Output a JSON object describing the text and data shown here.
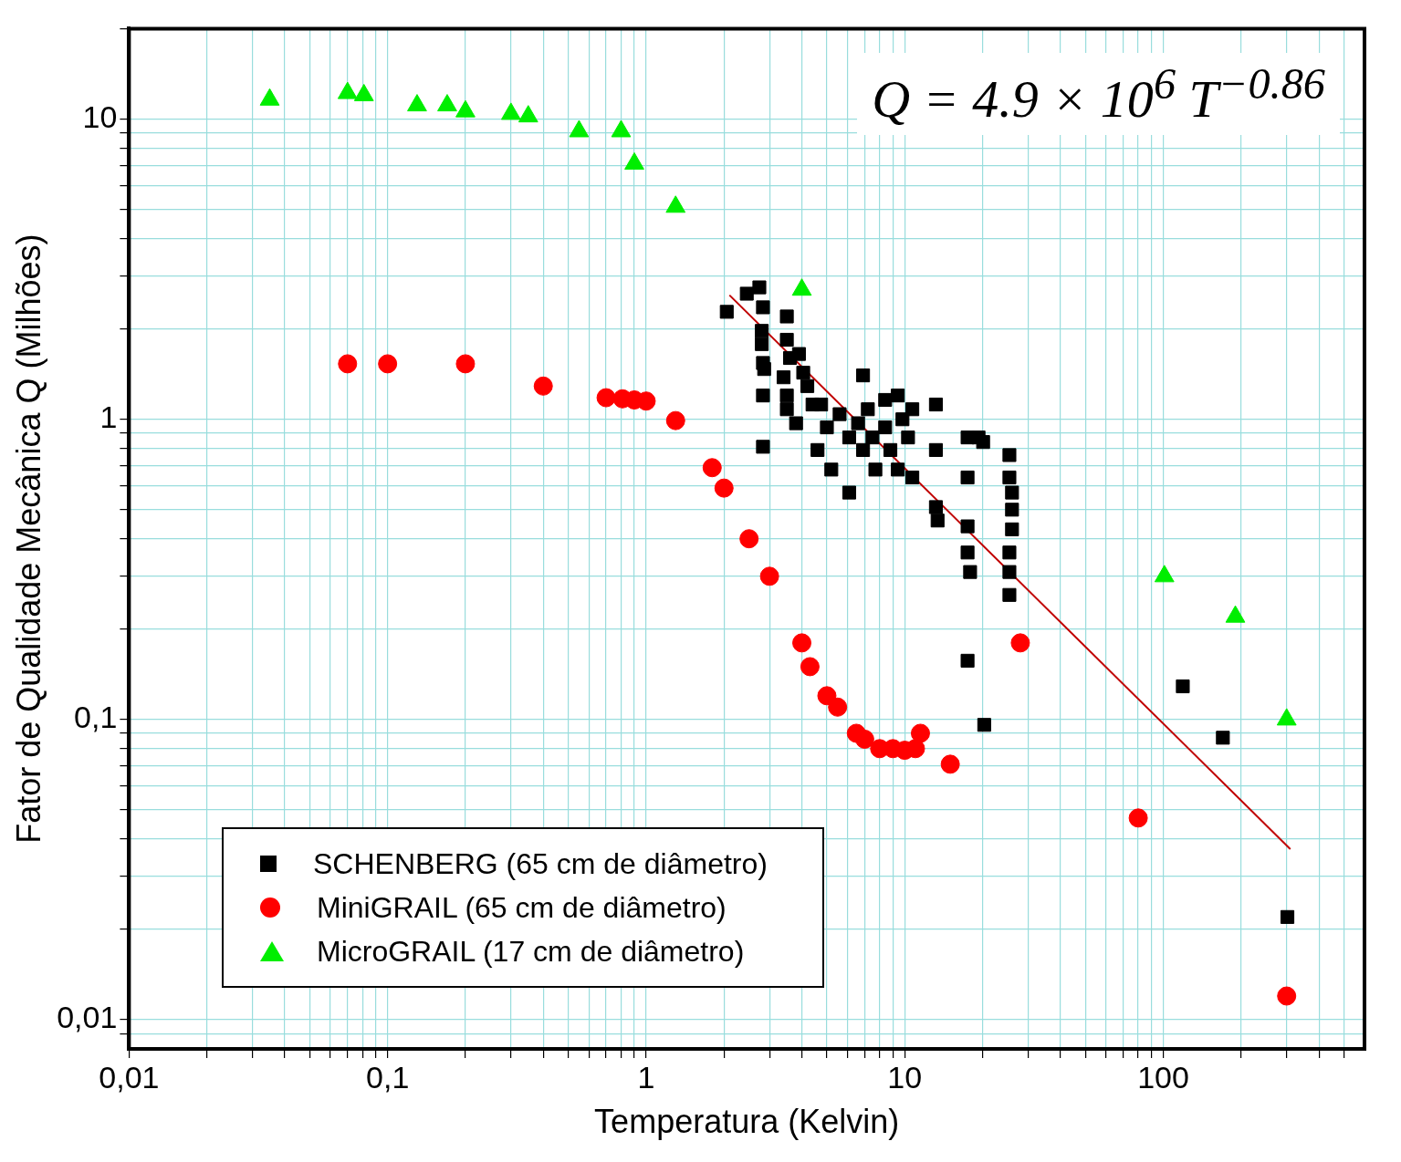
{
  "chart_data": {
    "type": "scatter",
    "xlabel": "Temperatura (Kelvin)",
    "ylabel": "Fator de Qualidade Mecânica Q (Milhões)",
    "log": "xy",
    "grid": true,
    "legend": "bottom left",
    "xlim": [
      0.01,
      600
    ],
    "ylim": [
      0.008,
      20
    ],
    "xticks": [
      {
        "value": 0.01,
        "label": "0,01"
      },
      {
        "value": 0.02,
        "label": null
      },
      {
        "value": 0.03,
        "label": null
      },
      {
        "value": 0.04,
        "label": null
      },
      {
        "value": 0.05,
        "label": null
      },
      {
        "value": 0.06,
        "label": null
      },
      {
        "value": 0.07,
        "label": null
      },
      {
        "value": 0.08,
        "label": null
      },
      {
        "value": 0.09,
        "label": null
      },
      {
        "value": 0.1,
        "label": "0,1"
      },
      {
        "value": 0.2,
        "label": null
      },
      {
        "value": 0.3,
        "label": null
      },
      {
        "value": 0.4,
        "label": null
      },
      {
        "value": 0.5,
        "label": null
      },
      {
        "value": 0.6,
        "label": null
      },
      {
        "value": 0.7,
        "label": null
      },
      {
        "value": 0.8,
        "label": null
      },
      {
        "value": 0.9,
        "label": null
      },
      1,
      {
        "value": 2,
        "label": null
      },
      {
        "value": 3,
        "label": null
      },
      {
        "value": 4,
        "label": null
      },
      {
        "value": 5,
        "label": null
      },
      {
        "value": 6,
        "label": null
      },
      {
        "value": 7,
        "label": null
      },
      {
        "value": 8,
        "label": null
      },
      {
        "value": 9,
        "label": null
      },
      10,
      {
        "value": 20,
        "label": null
      },
      {
        "value": 30,
        "label": null
      },
      {
        "value": 40,
        "label": null
      },
      {
        "value": 50,
        "label": null
      },
      {
        "value": 60,
        "label": null
      },
      {
        "value": 70,
        "label": null
      },
      {
        "value": 80,
        "label": null
      },
      {
        "value": 90,
        "label": null
      },
      100,
      {
        "value": 200,
        "label": null
      },
      {
        "value": 300,
        "label": null
      },
      {
        "value": 400,
        "label": null
      },
      {
        "value": 500,
        "label": null
      }
    ],
    "yticks": [
      {
        "value": 0.009,
        "label": null
      },
      {
        "value": 0.01,
        "label": "0,01"
      },
      {
        "value": 0.02,
        "label": null
      },
      {
        "value": 0.03,
        "label": null
      },
      {
        "value": 0.04,
        "label": null
      },
      {
        "value": 0.05,
        "label": null
      },
      {
        "value": 0.06,
        "label": null
      },
      {
        "value": 0.07,
        "label": null
      },
      {
        "value": 0.08,
        "label": null
      },
      {
        "value": 0.09,
        "label": null
      },
      {
        "value": 0.1,
        "label": "0,1"
      },
      {
        "value": 0.2,
        "label": null
      },
      {
        "value": 0.3,
        "label": null
      },
      {
        "value": 0.4,
        "label": null
      },
      {
        "value": 0.5,
        "label": null
      },
      {
        "value": 0.6,
        "label": null
      },
      {
        "value": 0.7,
        "label": null
      },
      {
        "value": 0.8,
        "label": null
      },
      {
        "value": 0.9,
        "label": null
      },
      1,
      {
        "value": 2,
        "label": null
      },
      {
        "value": 3,
        "label": null
      },
      {
        "value": 4,
        "label": null
      },
      {
        "value": 5,
        "label": null
      },
      {
        "value": 6,
        "label": null
      },
      {
        "value": 7,
        "label": null
      },
      {
        "value": 8,
        "label": null
      },
      {
        "value": 9,
        "label": null
      },
      10,
      {
        "value": 20,
        "label": null
      }
    ],
    "annotations": [
      "Q = 4.9 × 10$^{6}$ T$^{−0.86}$"
    ],
    "series": [
      {
        "name": "SCHENBERG (65 cm de diâmetro)",
        "color": "#000000",
        "marker": "square",
        "x": [
          2.05,
          2.45,
          2.74,
          2.83,
          2.8,
          2.8,
          2.83,
          2.86,
          2.83,
          2.83,
          3.5,
          3.5,
          3.6,
          3.4,
          3.5,
          3.5,
          3.9,
          4.05,
          4.2,
          4.4,
          3.8,
          4.75,
          5.0,
          4.6,
          5.2,
          5.6,
          6.1,
          6.1,
          6.6,
          6.9,
          6.9,
          7.2,
          7.5,
          7.7,
          8.4,
          8.4,
          8.8,
          9.4,
          9.4,
          9.8,
          10.3,
          10.7,
          10.7,
          13.2,
          13.2,
          13.2,
          13.4,
          17.5,
          19.3,
          20.1,
          17.5,
          17.5,
          17.5,
          17.9,
          25.4,
          25.4,
          26,
          26,
          26,
          25.4,
          25.4,
          25.4,
          17.5,
          20.3,
          119,
          170,
          302
        ],
        "values": [
          2.28,
          2.62,
          2.75,
          2.36,
          1.97,
          1.78,
          1.54,
          1.47,
          1.2,
          0.81,
          2.2,
          1.84,
          1.6,
          1.38,
          1.2,
          1.08,
          1.65,
          1.43,
          1.29,
          1.12,
          0.97,
          1.12,
          0.94,
          0.79,
          0.68,
          1.04,
          0.87,
          0.57,
          0.97,
          1.4,
          0.79,
          1.08,
          0.87,
          0.68,
          1.16,
          0.94,
          0.79,
          1.2,
          0.68,
          1.0,
          0.87,
          1.08,
          0.64,
          1.12,
          0.79,
          0.51,
          0.46,
          0.87,
          0.87,
          0.84,
          0.64,
          0.44,
          0.36,
          0.31,
          0.76,
          0.64,
          0.57,
          0.5,
          0.43,
          0.36,
          0.31,
          0.26,
          0.157,
          0.096,
          0.129,
          0.087,
          0.022
        ]
      },
      {
        "name": "MiniGRAIL (65 cm de diâmetro)",
        "color": "#ff0000",
        "marker": "circle",
        "x": [
          0.07,
          0.1,
          0.2,
          0.4,
          0.7,
          0.81,
          0.9,
          1.0,
          1.3,
          1.8,
          2.0,
          2.5,
          3.0,
          4.0,
          4.3,
          5.0,
          5.5,
          6.5,
          7.0,
          8.0,
          9.0,
          10,
          11,
          11.5,
          15,
          28,
          80,
          300
        ],
        "values": [
          1.53,
          1.53,
          1.53,
          1.29,
          1.18,
          1.17,
          1.16,
          1.15,
          0.99,
          0.69,
          0.59,
          0.4,
          0.3,
          0.18,
          0.15,
          0.12,
          0.11,
          0.09,
          0.086,
          0.08,
          0.08,
          0.079,
          0.08,
          0.09,
          0.071,
          0.18,
          0.047,
          0.012
        ]
      },
      {
        "name": "MicroGRAIL (17 cm de diâmetro)",
        "color": "#00ee00",
        "marker": "triangle",
        "x": [
          0.035,
          0.07,
          0.081,
          0.13,
          0.17,
          0.2,
          0.3,
          0.35,
          0.55,
          0.8,
          0.9,
          1.3,
          4.0,
          101,
          190,
          300
        ],
        "values": [
          11.6,
          12.2,
          12,
          11.1,
          11.1,
          10.6,
          10.4,
          10.2,
          9.1,
          9.1,
          7.1,
          5.1,
          2.7,
          0.3,
          0.22,
          0.1
        ]
      },
      {
        "type": "line",
        "color": "#c00000",
        "marker": "none",
        "x": [
          2.1,
          310
        ],
        "values": [
          2.59,
          0.037
        ]
      }
    ]
  }
}
